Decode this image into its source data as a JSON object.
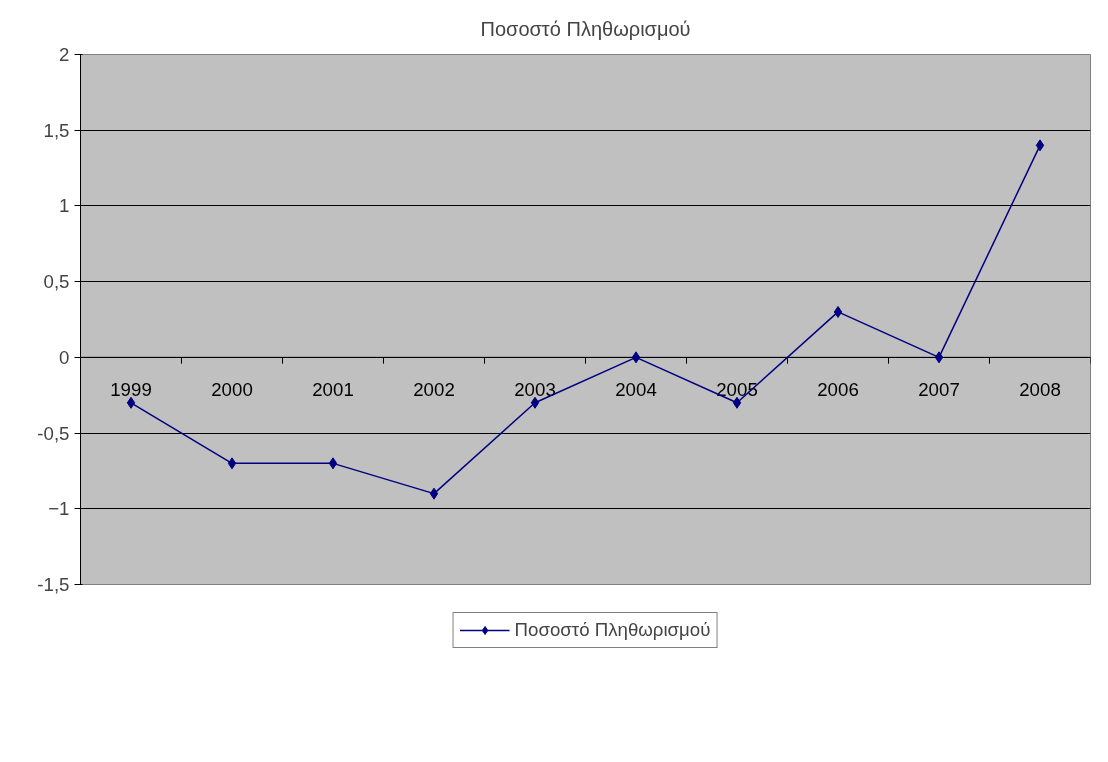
{
  "chart_data": {
    "type": "line",
    "title": "Ποσοστό Πληθωρισμού",
    "categories": [
      "1999",
      "2000",
      "2001",
      "2002",
      "2003",
      "2004",
      "2005",
      "2006",
      "2007",
      "2008"
    ],
    "series": [
      {
        "name": "Ποσοστό Πληθωρισμού",
        "color": "#000080",
        "values": [
          -0.3,
          -0.7,
          -0.7,
          -0.9,
          -0.3,
          0,
          -0.3,
          0.3,
          0,
          1.4
        ]
      }
    ],
    "ylim": [
      -1.5,
      2
    ],
    "yticks": [
      {
        "value": -1.5,
        "label": "-1,5"
      },
      -1,
      {
        "value": -0.5,
        "label": "-0,5"
      },
      0,
      {
        "value": 0.5,
        "label": "0,5"
      },
      1,
      {
        "value": 1.5,
        "label": "1,5"
      },
      2
    ],
    "grid": "y",
    "legend": "bottom",
    "marker": "diamond",
    "line_style": "solid"
  }
}
